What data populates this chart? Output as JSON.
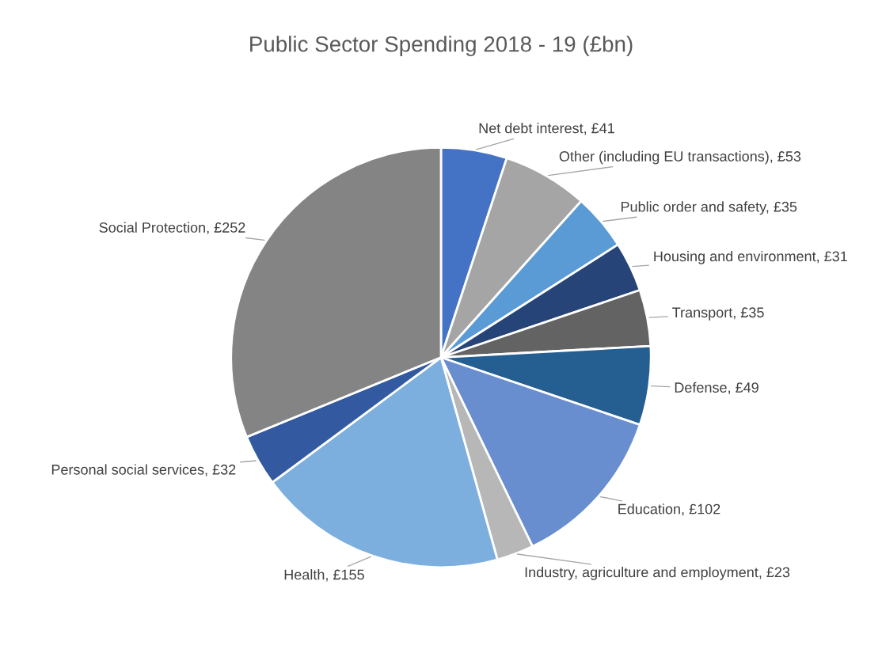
{
  "chart_data": {
    "type": "pie",
    "title": "Public Sector Spending 2018 - 19 (£bn)",
    "categories": [
      "Net debt interest",
      "Other (including EU transactions)",
      "Public order and safety",
      "Housing and environment",
      "Transport",
      "Defense",
      "Education",
      "Industry, agriculture and employment",
      "Health",
      "Personal social services",
      "Social Protection"
    ],
    "values": [
      41,
      53,
      35,
      31,
      35,
      49,
      102,
      23,
      155,
      32,
      252
    ],
    "value_labels": [
      "£41",
      "£53",
      "£35",
      "£31",
      "£35",
      "£49",
      "£102",
      "£23",
      "£155",
      "£32",
      "£252"
    ],
    "colors": [
      "#4472c4",
      "#a5a5a5",
      "#5b9bd5",
      "#264478",
      "#636363",
      "#255e91",
      "#698ed0",
      "#b7b7b7",
      "#7cafdd",
      "#335aa1",
      "#848484"
    ],
    "legend": false
  }
}
